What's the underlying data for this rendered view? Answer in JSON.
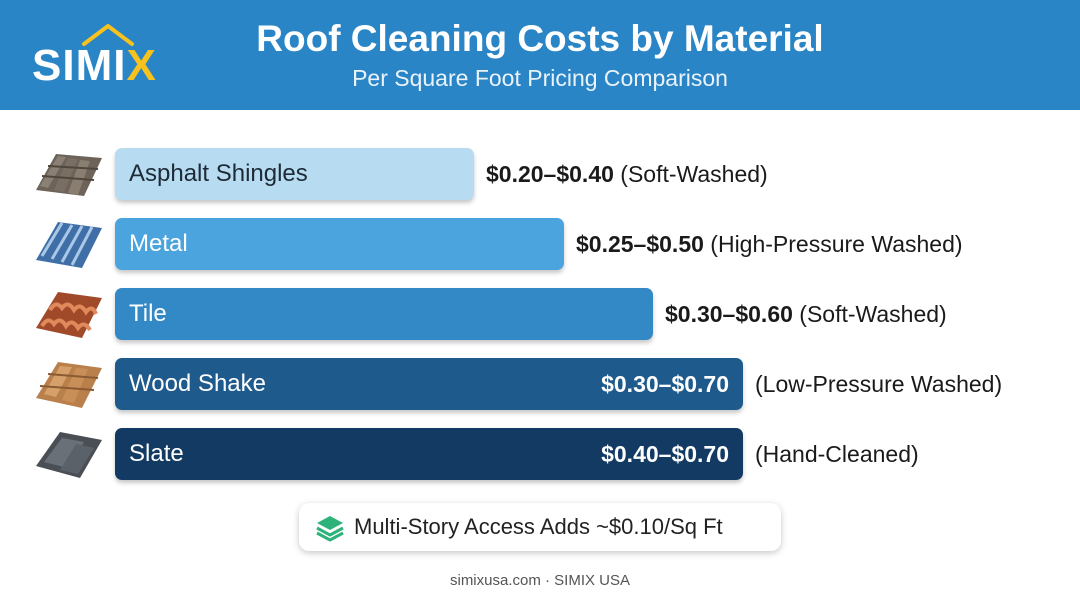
{
  "header": {
    "logo_text_main": "SIMI",
    "logo_text_accent": "X",
    "title": "Roof Cleaning Costs by Material",
    "subtitle": "Per Square Foot Pricing Comparison"
  },
  "colors": {
    "header_bg": "#2a85c6",
    "logo_accent": "#f7c21d",
    "note_icon": "#2db37a"
  },
  "chart_data": {
    "type": "bar",
    "orientation": "horizontal",
    "title": "Roof Cleaning Costs by Material",
    "subtitle": "Per Square Foot Pricing Comparison",
    "xlabel": "",
    "ylabel": "",
    "xlim": [
      0,
      0.7
    ],
    "grid": false,
    "categories": [
      "Asphalt Shingles",
      "Metal",
      "Tile",
      "Wood Shake",
      "Slate"
    ],
    "low": [
      0.2,
      0.25,
      0.3,
      0.3,
      0.4
    ],
    "high": [
      0.4,
      0.5,
      0.6,
      0.7,
      0.7
    ],
    "items": [
      {
        "label": "Asphalt Shingles",
        "price": "$0.20–$0.40",
        "method": "(Soft-Washed)",
        "value": 0.4,
        "color": "#b7dcf2",
        "label_color": "#1e2a36",
        "icon": "asphalt-shingles-icon"
      },
      {
        "label": "Metal",
        "price": "$0.25–$0.50",
        "method": "(High-Pressure Washed)",
        "value": 0.5,
        "color": "#4ba4de",
        "label_color": "#ffffff",
        "icon": "metal-roof-icon"
      },
      {
        "label": "Tile",
        "price": "$0.30–$0.60",
        "method": "(Soft-Washed)",
        "value": 0.6,
        "color": "#3388c6",
        "label_color": "#ffffff",
        "icon": "clay-tile-icon"
      },
      {
        "label": "Wood Shake",
        "price": "$0.30–$0.70",
        "method": "(Low-Pressure Washed)",
        "value": 0.7,
        "color": "#1f5a8d",
        "label_color": "#ffffff",
        "icon": "wood-shake-icon"
      },
      {
        "label": "Slate",
        "price": "$0.40–$0.70",
        "method": "(Hand-Cleaned)",
        "value": 0.7,
        "color": "#123a62",
        "label_color": "#ffffff",
        "icon": "slate-icon"
      }
    ]
  },
  "note": {
    "text": "Multi-Story Access Adds ~$0.10/Sq Ft",
    "icon": "layers-icon"
  },
  "footer": {
    "text": "simixusa.com · SIMIX USA"
  }
}
